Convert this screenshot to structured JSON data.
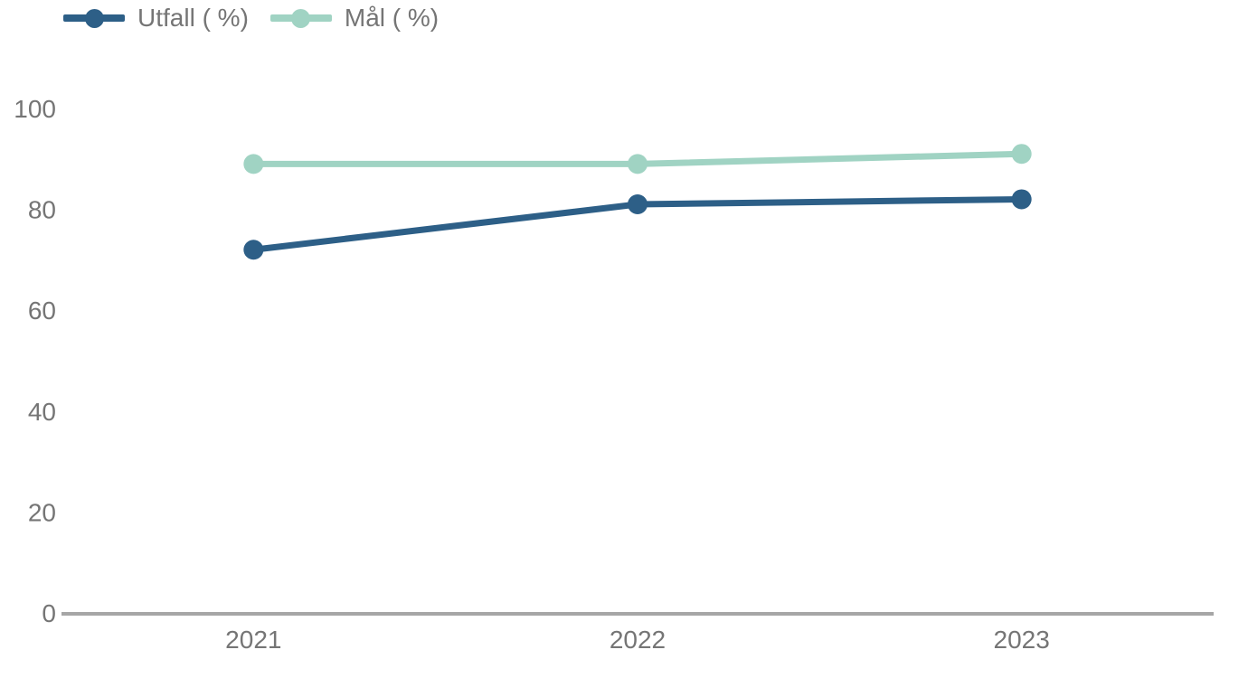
{
  "chart_data": {
    "type": "line",
    "title": "",
    "xlabel": "",
    "ylabel": "",
    "categories": [
      "2021",
      "2022",
      "2023"
    ],
    "series": [
      {
        "name": "Utfall ( %)",
        "values": [
          72,
          81,
          82
        ],
        "color": "#2d5f87"
      },
      {
        "name": "Mål ( %)",
        "values": [
          89,
          89,
          91
        ],
        "color": "#a0d3c3"
      }
    ],
    "ylim": [
      0,
      100
    ],
    "yticks": [
      0,
      20,
      40,
      60,
      80,
      100
    ],
    "grid": false,
    "legend_position": "top-left",
    "axis_color": "#a6a6a6",
    "tick_label_color": "#757575",
    "background_color": "#ffffff"
  }
}
